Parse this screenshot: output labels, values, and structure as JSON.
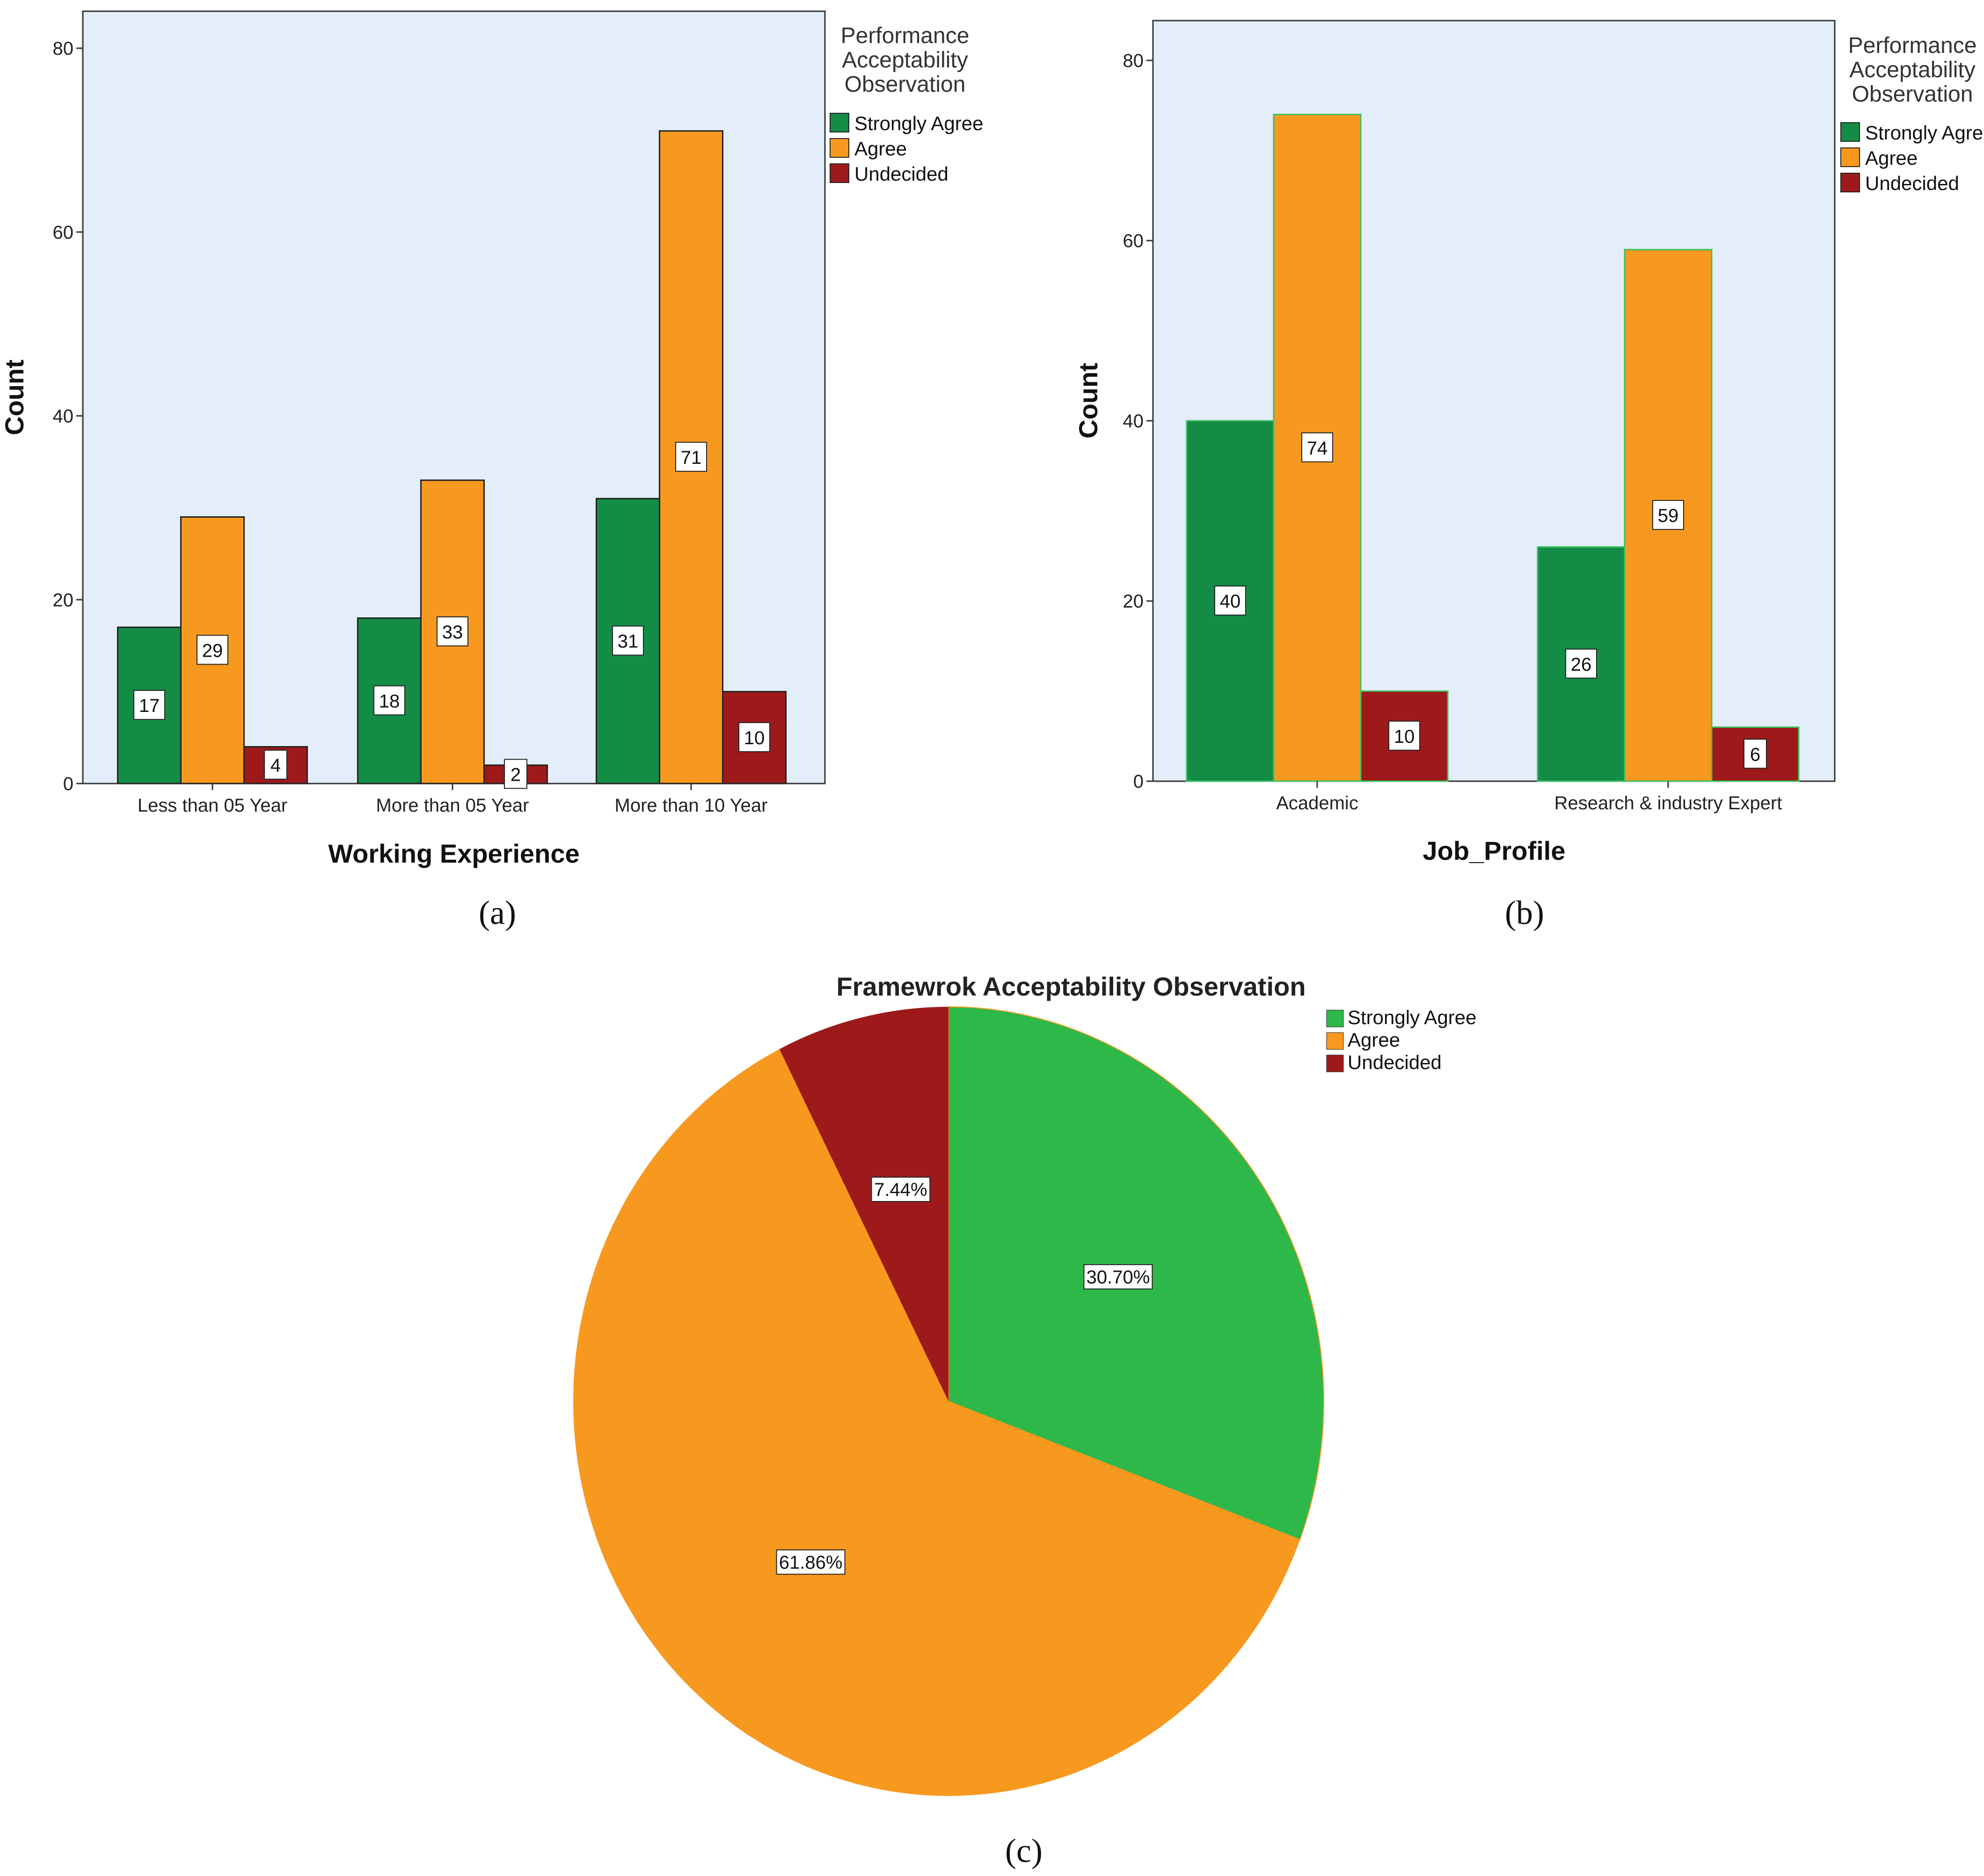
{
  "colors": {
    "strongly_agree_bar": "#138c45",
    "agree_bar": "#f7991f",
    "undecided_bar": "#9e1a1a",
    "strongly_agree_pie": "#2eb84a",
    "plot_background": "#e3eefa"
  },
  "panel_labels": {
    "a": "(a)",
    "b": "(b)",
    "c": "(c)"
  },
  "chart_data": [
    {
      "type": "bar",
      "id": "a",
      "title": "",
      "xlabel": "Working Experience",
      "ylabel": "Count",
      "ylim": [
        0,
        85
      ],
      "yticks": [
        0,
        20,
        40,
        60,
        80
      ],
      "grid": false,
      "legend_title": "Performance Acceptability Observation",
      "legend_position": "right",
      "categories": [
        "Less than 05 Year",
        "More than 05 Year",
        "More than 10 Year"
      ],
      "series": [
        {
          "name": "Strongly Agree",
          "values": [
            17,
            18,
            31
          ]
        },
        {
          "name": "Agree",
          "values": [
            29,
            33,
            71
          ]
        },
        {
          "name": "Undecided",
          "values": [
            4,
            2,
            10
          ]
        }
      ]
    },
    {
      "type": "bar",
      "id": "b",
      "title": "",
      "xlabel": "Job_Profile",
      "ylabel": "Count",
      "ylim": [
        0,
        85
      ],
      "yticks": [
        0,
        20,
        40,
        60,
        80
      ],
      "grid": false,
      "legend_title": "Performance Acceptability Observation",
      "legend_position": "right",
      "categories": [
        "Academic",
        "Research & industry Expert"
      ],
      "series": [
        {
          "name": "Strongly Agree",
          "values": [
            40,
            26
          ]
        },
        {
          "name": "Agree",
          "values": [
            74,
            59
          ]
        },
        {
          "name": "Undecided",
          "values": [
            10,
            6
          ]
        }
      ]
    },
    {
      "type": "pie",
      "id": "c",
      "title": "Framewrok Acceptability Observation",
      "legend_position": "top-right",
      "slices": [
        {
          "name": "Strongly Agree",
          "value": 30.7,
          "label": "30.70%"
        },
        {
          "name": "Agree",
          "value": 61.86,
          "label": "61.86%"
        },
        {
          "name": "Undecided",
          "value": 7.44,
          "label": "7.44%"
        }
      ]
    }
  ]
}
